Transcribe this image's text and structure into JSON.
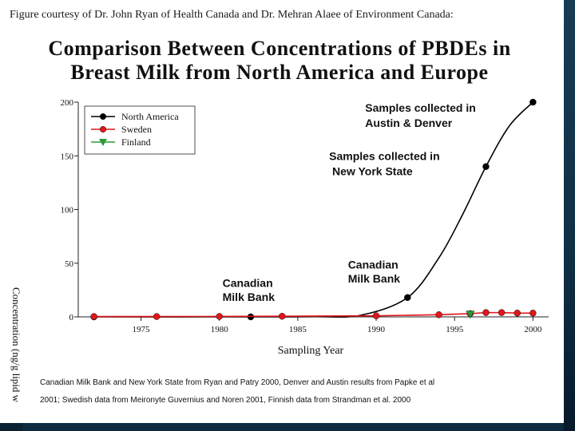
{
  "credit": "Figure courtesy of Dr. John Ryan of Health Canada and Dr. Mehran Alaee of Environment Canada:",
  "chart_data": {
    "type": "line",
    "title": "Comparison Between Concentrations of PBDEs in Breast Milk from North America and Europe",
    "xlabel": "Sampling Year",
    "ylabel": "Concentration (ng/g lipid w",
    "xlim": [
      1971,
      2001
    ],
    "ylim": [
      0,
      200
    ],
    "xticks": [
      1975,
      1980,
      1985,
      1990,
      1995,
      2000
    ],
    "yticks": [
      0,
      50,
      100,
      150,
      200
    ],
    "xtick_labels": [
      "1975",
      "1980",
      "1985",
      "1990",
      "1995",
      "2000"
    ],
    "ytick_labels": [
      "0",
      "50",
      "100",
      "150",
      "200"
    ],
    "grid": false,
    "legend_position": "top-left",
    "series": [
      {
        "name": "North America",
        "color": "#000000",
        "marker": "circle",
        "points": [
          [
            1972,
            0
          ],
          [
            1982,
            0
          ],
          [
            1992,
            18
          ],
          [
            1997,
            140
          ],
          [
            2000,
            200
          ]
        ],
        "curve": [
          [
            1972,
            0
          ],
          [
            1982,
            0
          ],
          [
            1986,
            0.2
          ],
          [
            1989,
            1.5
          ],
          [
            1992,
            18
          ],
          [
            1994,
            55
          ],
          [
            1995.5,
            95
          ],
          [
            1997,
            140
          ],
          [
            1998.5,
            178
          ],
          [
            2000,
            200
          ]
        ]
      },
      {
        "name": "Sweden",
        "color": "#e0161b",
        "marker": "circle",
        "points": [
          [
            1972,
            0.3
          ],
          [
            1976,
            0.3
          ],
          [
            1980,
            0.4
          ],
          [
            1984,
            0.6
          ],
          [
            1990,
            1.0
          ],
          [
            1994,
            2.0
          ],
          [
            1996,
            3.0
          ],
          [
            1997,
            4.0
          ],
          [
            1998,
            4.0
          ],
          [
            1999,
            3.5
          ],
          [
            2000,
            3.5
          ]
        ]
      },
      {
        "name": "Finland",
        "color": "#2a9a3a",
        "marker": "triangle-down",
        "points": [
          [
            1996,
            2.5
          ]
        ]
      }
    ],
    "annotations": [
      {
        "text": "Samples collected in",
        "x": 1989.3,
        "y": 191
      },
      {
        "text": "Austin & Denver",
        "x": 1989.3,
        "y": 177
      },
      {
        "text": "Samples collected in",
        "x": 1987,
        "y": 146
      },
      {
        "text": "New York State",
        "x": 1987.2,
        "y": 132
      },
      {
        "text": "Canadian",
        "x": 1988.2,
        "y": 45
      },
      {
        "text": "Milk Bank",
        "x": 1988.2,
        "y": 32
      },
      {
        "text": "Canadian",
        "x": 1980.2,
        "y": 28
      },
      {
        "text": "Milk Bank",
        "x": 1980.2,
        "y": 15
      }
    ]
  },
  "source_lines": [
    "Canadian Milk Bank and New York State from Ryan and Patry 2000, Denver and Austin results from Papke et al",
    "2001; Swedish data from Meironyte Guvernius and Noren 2001, Finnish data from Strandman et al. 2000"
  ]
}
